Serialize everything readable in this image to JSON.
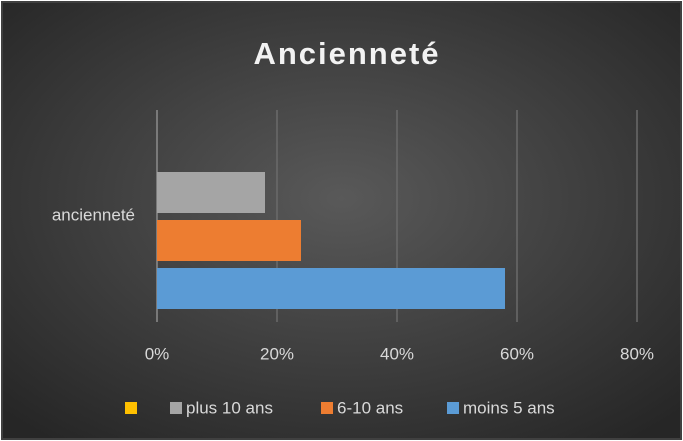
{
  "chart_data": {
    "type": "bar",
    "orientation": "horizontal",
    "title": "Ancienneté",
    "categories": [
      "ancienneté"
    ],
    "series": [
      {
        "name": null,
        "color": "#ffc000",
        "values": [
          null
        ]
      },
      {
        "name": "plus 10 ans",
        "color": "#a5a5a5",
        "values": [
          18
        ]
      },
      {
        "name": "6-10 ans",
        "color": "#ed7d31",
        "values": [
          24
        ]
      },
      {
        "name": "moins 5 ans",
        "color": "#5b9bd5",
        "values": [
          58
        ]
      }
    ],
    "xlim": [
      0,
      80
    ],
    "xticks": [
      {
        "value": 0,
        "label": "0%"
      },
      {
        "value": 20,
        "label": "20%"
      },
      {
        "value": 40,
        "label": "40%"
      },
      {
        "value": 60,
        "label": "60%"
      },
      {
        "value": 80,
        "label": "80%"
      }
    ],
    "grid": true,
    "legend": "bottom"
  }
}
